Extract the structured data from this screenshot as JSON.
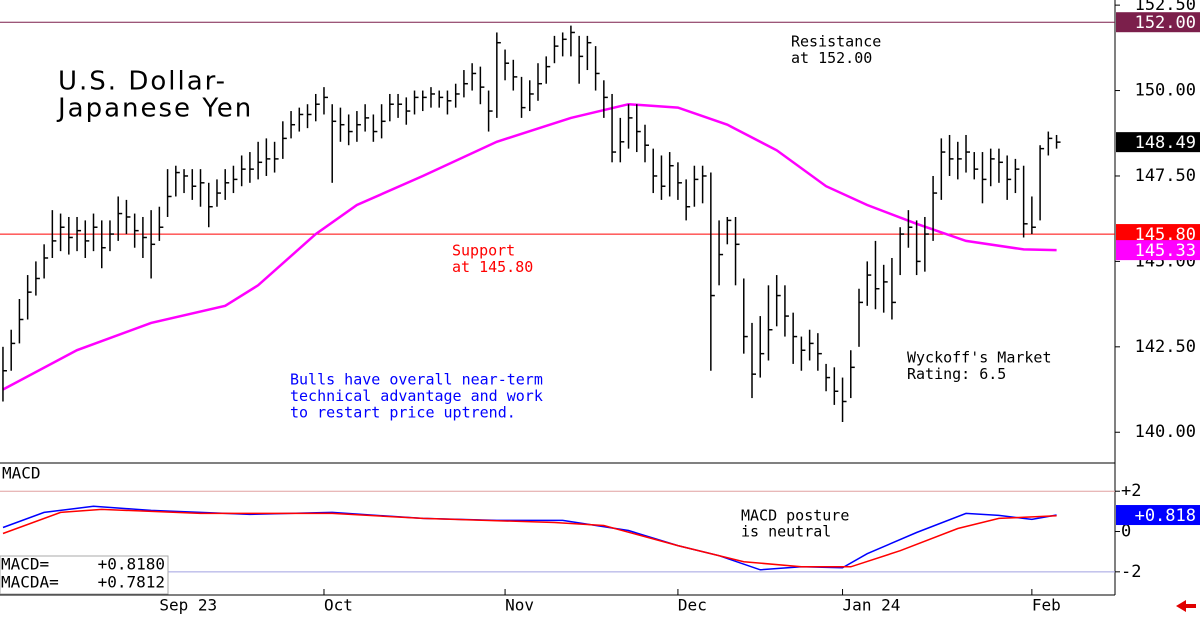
{
  "chart_data": [
    {
      "type": "ohlc",
      "title": [
        "U.S. Dollar-",
        "Japanese Yen"
      ],
      "color": "#000000",
      "x": [
        0,
        1,
        2,
        3,
        4,
        5,
        6,
        7,
        8,
        9,
        10,
        11,
        12,
        13,
        14,
        15,
        16,
        17,
        18,
        19,
        20,
        21,
        22,
        23,
        24,
        25,
        26,
        27,
        28,
        29,
        30,
        31,
        32,
        33,
        34,
        35,
        36,
        37,
        38,
        39,
        40,
        41,
        42,
        43,
        44,
        45,
        46,
        47,
        48,
        49,
        50,
        51,
        52,
        53,
        54,
        55,
        56,
        57,
        58,
        59,
        60,
        61,
        62,
        63,
        64,
        65,
        66,
        67,
        68,
        69,
        70,
        71,
        72,
        73,
        74,
        75,
        76,
        77,
        78,
        79,
        80,
        81,
        82,
        83,
        84,
        85,
        86,
        87,
        88,
        89,
        90,
        91,
        92,
        93,
        94,
        95,
        96,
        97,
        98,
        99,
        100,
        101,
        102,
        103,
        104,
        105,
        106,
        107,
        108,
        109,
        110,
        111,
        112,
        113,
        114,
        115,
        116,
        117,
        118,
        119,
        120,
        121,
        122,
        123,
        124,
        125,
        126,
        127,
        128
      ],
      "high": [
        142.5,
        143.0,
        143.9,
        144.6,
        145.0,
        145.5,
        146.5,
        146.4,
        146.3,
        146.3,
        146.2,
        146.4,
        146.2,
        146.2,
        146.9,
        146.8,
        146.4,
        146.3,
        146.5,
        146.6,
        147.7,
        147.8,
        147.7,
        147.7,
        147.7,
        147.3,
        147.4,
        147.7,
        147.8,
        148.1,
        148.2,
        148.5,
        148.6,
        148.5,
        149.1,
        149.4,
        149.5,
        149.6,
        149.9,
        150.1,
        149.6,
        149.5,
        149.3,
        149.4,
        149.6,
        149.3,
        149.6,
        149.9,
        149.9,
        149.8,
        150.0,
        150.0,
        150.1,
        150.0,
        150.0,
        150.2,
        150.6,
        150.8,
        150.7,
        150.0,
        151.7,
        151.2,
        150.9,
        150.4,
        150.3,
        150.8,
        151.0,
        151.6,
        151.7,
        151.9,
        151.6,
        151.6,
        151.3,
        150.3,
        149.9,
        149.2,
        149.6,
        149.6,
        149.0,
        148.3,
        148.1,
        148.2,
        147.9,
        147.4,
        147.8,
        147.8,
        147.6,
        146.2,
        146.3,
        146.3,
        144.5,
        143.2,
        143.4,
        144.3,
        144.6,
        144.3,
        143.5,
        142.8,
        143.0,
        142.9,
        142.0,
        141.9,
        141.6,
        142.4,
        144.2,
        145.0,
        145.6,
        144.9,
        145.1,
        146.0,
        146.5,
        146.2,
        146.3,
        147.5,
        148.6,
        148.7,
        148.5,
        148.7,
        148.2,
        148.2,
        148.3,
        148.3,
        148.1,
        148.0,
        147.8,
        146.9,
        148.4,
        148.8,
        148.7
      ],
      "low": [
        140.9,
        141.8,
        142.6,
        143.3,
        144.0,
        144.5,
        145.1,
        145.3,
        145.2,
        145.3,
        145.1,
        145.3,
        144.8,
        145.3,
        145.6,
        145.8,
        145.4,
        145.1,
        144.5,
        145.6,
        146.3,
        146.9,
        147.0,
        146.8,
        146.6,
        146.0,
        146.6,
        146.8,
        147.0,
        147.2,
        147.3,
        147.4,
        147.5,
        147.6,
        148.0,
        148.6,
        148.8,
        148.9,
        149.1,
        149.3,
        147.3,
        148.5,
        148.4,
        148.5,
        148.8,
        148.5,
        148.6,
        149.1,
        149.2,
        149.0,
        149.3,
        149.4,
        149.5,
        149.5,
        149.3,
        149.5,
        149.8,
        150.0,
        149.6,
        148.8,
        149.2,
        150.3,
        150.0,
        149.2,
        149.4,
        149.7,
        150.2,
        150.8,
        151.0,
        151.0,
        150.2,
        150.6,
        150.0,
        149.2,
        147.9,
        147.9,
        148.3,
        148.2,
        147.9,
        147.0,
        146.8,
        146.9,
        146.8,
        146.2,
        146.6,
        146.7,
        141.8,
        144.3,
        145.5,
        144.3,
        142.3,
        141.0,
        141.6,
        142.1,
        143.1,
        142.8,
        142.0,
        141.8,
        142.1,
        141.8,
        141.2,
        140.8,
        140.3,
        141.0,
        142.5,
        143.7,
        143.6,
        143.5,
        143.3,
        144.6,
        145.4,
        144.6,
        144.7,
        145.6,
        146.8,
        147.5,
        147.4,
        147.6,
        147.4,
        146.7,
        147.2,
        147.3,
        146.8,
        147.0,
        145.7,
        145.8,
        146.2,
        148.1,
        148.3
      ],
      "close": [
        141.8,
        142.6,
        143.3,
        144.1,
        144.5,
        145.1,
        145.6,
        146.0,
        145.7,
        145.9,
        145.6,
        146.0,
        145.4,
        145.8,
        146.4,
        146.3,
        145.9,
        145.7,
        145.5,
        146.0,
        146.9,
        147.6,
        147.5,
        147.2,
        147.3,
        146.6,
        147.0,
        147.3,
        147.4,
        147.7,
        147.7,
        147.9,
        148.0,
        148.0,
        148.6,
        149.0,
        149.3,
        149.3,
        149.6,
        149.8,
        149.1,
        149.0,
        148.8,
        149.0,
        149.2,
        148.8,
        149.1,
        149.6,
        149.6,
        149.4,
        149.8,
        149.8,
        149.9,
        149.8,
        149.7,
        149.9,
        150.2,
        150.5,
        150.1,
        149.4,
        151.4,
        150.8,
        150.4,
        149.5,
        149.9,
        150.2,
        150.7,
        151.3,
        151.5,
        151.7,
        151.0,
        151.4,
        150.5,
        149.8,
        148.2,
        148.5,
        149.2,
        148.8,
        148.4,
        147.5,
        147.2,
        147.8,
        147.3,
        146.6,
        147.4,
        147.5,
        144.0,
        145.2,
        146.2,
        145.5,
        142.8,
        141.7,
        142.3,
        143.0,
        144.0,
        143.4,
        142.8,
        142.4,
        142.6,
        142.3,
        141.6,
        141.2,
        140.9,
        141.9,
        143.8,
        144.6,
        144.2,
        144.4,
        143.8,
        145.8,
        146.0,
        145.0,
        145.8,
        147.0,
        148.2,
        148.0,
        148.0,
        148.2,
        147.7,
        147.4,
        148.0,
        147.9,
        147.4,
        147.7,
        146.1,
        146.0,
        148.3,
        148.6,
        148.49
      ],
      "moving_average": {
        "color": "#ff00ff",
        "x": [
          0,
          9,
          18,
          27,
          31,
          38,
          43,
          51,
          60,
          69,
          76,
          82,
          88,
          94,
          100,
          105,
          111,
          117,
          124,
          128
        ],
        "values": [
          141.25,
          142.4,
          143.2,
          143.7,
          144.3,
          145.8,
          146.65,
          147.5,
          148.5,
          149.2,
          149.6,
          149.5,
          149.0,
          148.25,
          147.2,
          146.65,
          146.1,
          145.6,
          145.35,
          145.33
        ],
        "last_label": {
          "value": 145.33,
          "label": "145.33"
        }
      },
      "last_label": {
        "value": 148.49,
        "label": "148.49"
      },
      "levels": [
        {
          "value": 152,
          "label": "152.00",
          "color": "#7b1f4b"
        },
        {
          "value": 145.8,
          "label": "145.80",
          "color": "#ff0000"
        }
      ],
      "xlim": [
        -0.36,
        135.1
      ],
      "ylim": [
        139.1,
        152.65
      ],
      "yticks": [
        {
          "value": 140,
          "label": "140.00"
        },
        {
          "value": 142.5,
          "label": "142.50"
        },
        {
          "value": 145,
          "label": "145.00"
        },
        {
          "value": 147.5,
          "label": "147.50"
        },
        {
          "value": 150,
          "label": "150.00"
        },
        {
          "value": 152.5,
          "label": "152.50"
        }
      ],
      "annotations": [
        {
          "lines": [
            "Resistance",
            "at 152.00"
          ],
          "color": "#000000"
        },
        {
          "lines": [
            "Support",
            "at 145.80"
          ],
          "color": "#ff0000"
        },
        {
          "lines": [
            "Bulls have overall near-term",
            "technical advantage and work",
            "to restart price uptrend."
          ],
          "color": "#0000ff"
        },
        {
          "lines": [
            "Wyckoff's Market",
            "Rating: 6.5"
          ],
          "color": "#000000"
        }
      ]
    },
    {
      "type": "line",
      "title": "MACD",
      "series": [
        {
          "name": "MACD=",
          "color": "#0000ff",
          "x": [
            0,
            5,
            11,
            18,
            30,
            40,
            51,
            60,
            68,
            76,
            82,
            87,
            92,
            97,
            102,
            105,
            111,
            117,
            121,
            125,
            128
          ],
          "values": [
            0.2,
            0.95,
            1.25,
            1.05,
            0.85,
            0.95,
            0.65,
            0.55,
            0.55,
            0.05,
            -0.7,
            -1.2,
            -1.9,
            -1.75,
            -1.8,
            -1.1,
            -0.05,
            0.9,
            0.8,
            0.6,
            0.818
          ],
          "readout": {
            "value": 0.818,
            "label": "+0.8180"
          }
        },
        {
          "name": "MACDA=",
          "color": "#ff0000",
          "x": [
            0,
            7,
            12,
            24,
            40,
            51,
            67,
            73,
            82,
            90,
            97,
            103,
            109,
            116,
            121,
            128
          ],
          "values": [
            -0.1,
            0.95,
            1.1,
            0.9,
            0.9,
            0.65,
            0.45,
            0.3,
            -0.7,
            -1.5,
            -1.75,
            -1.75,
            -0.95,
            0.15,
            0.65,
            0.7812
          ],
          "readout": {
            "value": 0.7812,
            "label": "+0.7812"
          }
        }
      ],
      "last_label": {
        "value": 0.818,
        "label": "+0.818"
      },
      "annotation": {
        "lines": [
          "MACD posture",
          "is neutral"
        ],
        "color": "#000000"
      },
      "xlim": [
        -0.36,
        135.1
      ],
      "ylim": [
        -3.15,
        3.4
      ],
      "yticks": [
        {
          "value": -2,
          "label": "-2"
        },
        0,
        {
          "value": 2,
          "label": "+2"
        }
      ],
      "xticks": [
        {
          "value": 19,
          "label": "Sep 23"
        },
        {
          "value": 39,
          "label": "Oct"
        },
        {
          "value": 61,
          "label": "Nov"
        },
        {
          "value": 82,
          "label": "Dec"
        },
        {
          "value": 102,
          "label": "Jan 24"
        },
        {
          "value": 125,
          "label": "Feb"
        }
      ]
    }
  ]
}
